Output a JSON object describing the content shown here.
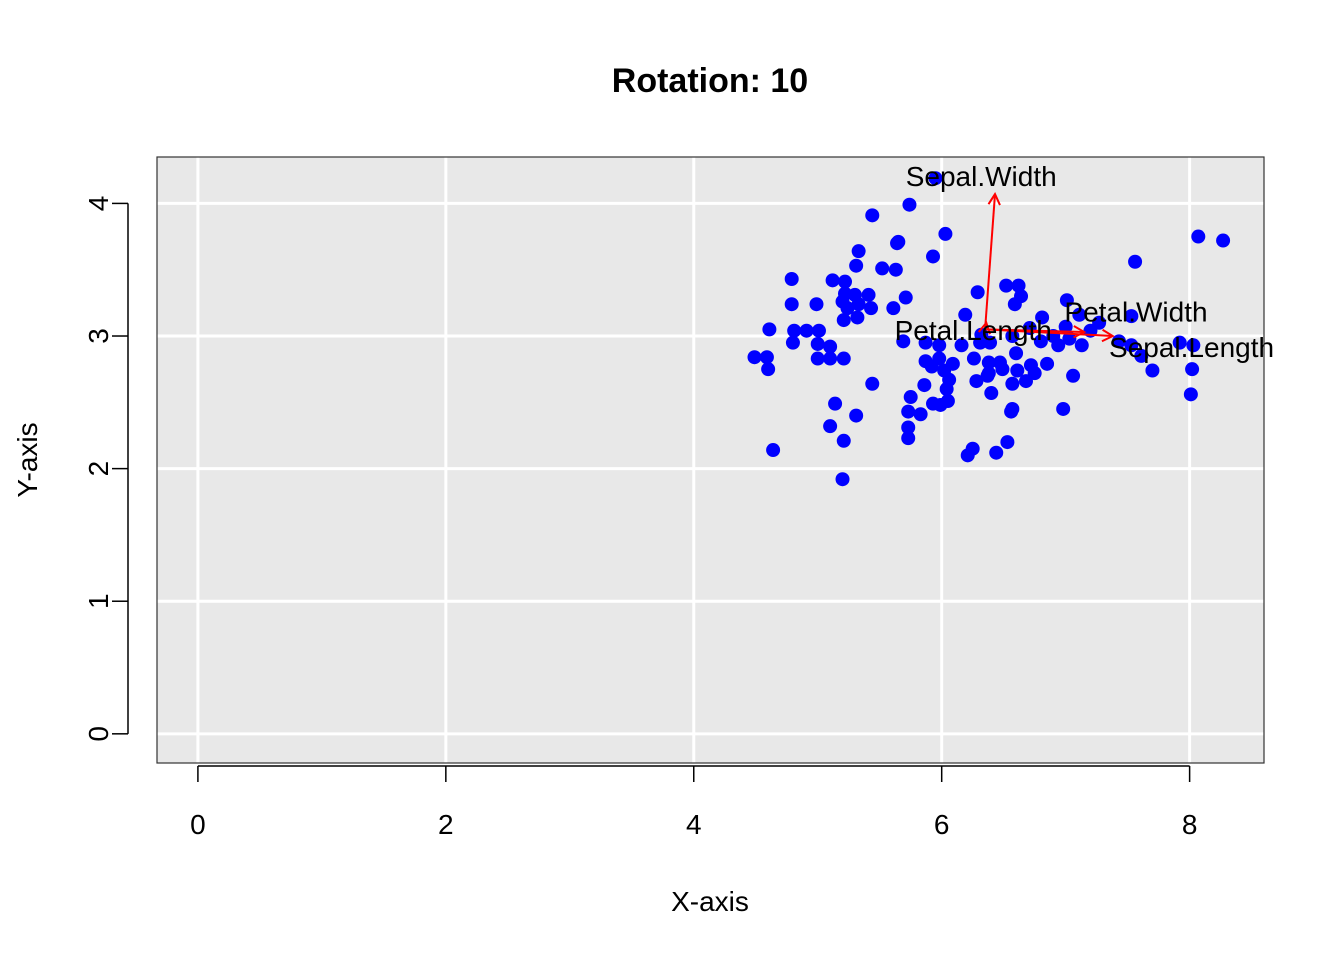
{
  "chart_data": {
    "type": "scatter",
    "title": "Rotation: 10",
    "xlabel": "X-axis",
    "ylabel": "Y-axis",
    "xlim": [
      -0.33,
      8.6
    ],
    "ylim": [
      -0.22,
      4.35
    ],
    "xticks": [
      0,
      2,
      4,
      6,
      8
    ],
    "yticks": [
      0,
      1,
      2,
      3,
      4
    ],
    "grid": true,
    "background_color": "#e8e8e8",
    "grid_color": "#ffffff",
    "point_color": "#0000ff",
    "arrow_color": "#ff0000",
    "points": [
      [
        5.95,
        4.19
      ],
      [
        5.74,
        3.99
      ],
      [
        5.44,
        3.91
      ],
      [
        6.03,
        3.77
      ],
      [
        5.65,
        3.71
      ],
      [
        5.64,
        3.7
      ],
      [
        5.33,
        3.64
      ],
      [
        5.93,
        3.6
      ],
      [
        5.31,
        3.53
      ],
      [
        5.52,
        3.51
      ],
      [
        5.63,
        3.5
      ],
      [
        8.07,
        3.75
      ],
      [
        8.27,
        3.72
      ],
      [
        7.56,
        3.56
      ],
      [
        4.79,
        3.43
      ],
      [
        5.12,
        3.42
      ],
      [
        5.22,
        3.41
      ],
      [
        6.29,
        3.33
      ],
      [
        6.52,
        3.38
      ],
      [
        6.62,
        3.38
      ],
      [
        5.22,
        3.32
      ],
      [
        5.3,
        3.31
      ],
      [
        5.41,
        3.31
      ],
      [
        5.71,
        3.29
      ],
      [
        6.64,
        3.3
      ],
      [
        7.01,
        3.27
      ],
      [
        4.79,
        3.24
      ],
      [
        4.99,
        3.24
      ],
      [
        5.2,
        3.26
      ],
      [
        5.33,
        3.24
      ],
      [
        5.24,
        3.21
      ],
      [
        5.43,
        3.21
      ],
      [
        5.61,
        3.21
      ],
      [
        6.19,
        3.16
      ],
      [
        6.59,
        3.24
      ],
      [
        6.81,
        3.14
      ],
      [
        7.11,
        3.16
      ],
      [
        7.27,
        3.1
      ],
      [
        7.53,
        3.15
      ],
      [
        5.21,
        3.12
      ],
      [
        5.32,
        3.14
      ],
      [
        6.71,
        3.06
      ],
      [
        7.0,
        3.07
      ],
      [
        7.2,
        3.04
      ],
      [
        4.61,
        3.05
      ],
      [
        4.81,
        3.04
      ],
      [
        4.91,
        3.04
      ],
      [
        5.01,
        3.04
      ],
      [
        6.32,
        3.01
      ],
      [
        6.57,
        3.0
      ],
      [
        6.9,
        3.0
      ],
      [
        7.03,
        2.98
      ],
      [
        7.43,
        2.96
      ],
      [
        7.53,
        2.93
      ],
      [
        4.8,
        2.95
      ],
      [
        5.0,
        2.94
      ],
      [
        5.1,
        2.92
      ],
      [
        5.69,
        2.96
      ],
      [
        5.87,
        2.95
      ],
      [
        5.98,
        2.93
      ],
      [
        6.16,
        2.93
      ],
      [
        6.31,
        2.95
      ],
      [
        6.39,
        2.95
      ],
      [
        6.8,
        2.96
      ],
      [
        6.94,
        2.93
      ],
      [
        7.13,
        2.93
      ],
      [
        7.92,
        2.95
      ],
      [
        8.03,
        2.93
      ],
      [
        4.49,
        2.84
      ],
      [
        4.59,
        2.84
      ],
      [
        5.0,
        2.83
      ],
      [
        5.1,
        2.83
      ],
      [
        5.21,
        2.83
      ],
      [
        5.87,
        2.81
      ],
      [
        5.98,
        2.83
      ],
      [
        6.09,
        2.79
      ],
      [
        6.26,
        2.83
      ],
      [
        6.38,
        2.8
      ],
      [
        6.6,
        2.87
      ],
      [
        6.72,
        2.78
      ],
      [
        6.85,
        2.79
      ],
      [
        7.61,
        2.85
      ],
      [
        4.6,
        2.75
      ],
      [
        5.92,
        2.77
      ],
      [
        6.02,
        2.74
      ],
      [
        6.38,
        2.72
      ],
      [
        6.47,
        2.8
      ],
      [
        6.49,
        2.75
      ],
      [
        6.61,
        2.74
      ],
      [
        6.75,
        2.72
      ],
      [
        7.06,
        2.7
      ],
      [
        7.7,
        2.74
      ],
      [
        8.02,
        2.75
      ],
      [
        6.06,
        2.67
      ],
      [
        6.28,
        2.66
      ],
      [
        6.37,
        2.7
      ],
      [
        6.57,
        2.64
      ],
      [
        6.68,
        2.66
      ],
      [
        5.44,
        2.64
      ],
      [
        5.86,
        2.63
      ],
      [
        6.04,
        2.6
      ],
      [
        6.4,
        2.57
      ],
      [
        8.01,
        2.56
      ],
      [
        5.75,
        2.54
      ],
      [
        5.93,
        2.49
      ],
      [
        5.99,
        2.48
      ],
      [
        6.05,
        2.51
      ],
      [
        5.14,
        2.49
      ],
      [
        5.73,
        2.43
      ],
      [
        5.83,
        2.41
      ],
      [
        6.56,
        2.43
      ],
      [
        6.57,
        2.45
      ],
      [
        6.98,
        2.45
      ],
      [
        5.31,
        2.4
      ],
      [
        5.1,
        2.32
      ],
      [
        5.73,
        2.31
      ],
      [
        5.21,
        2.21
      ],
      [
        5.73,
        2.23
      ],
      [
        6.53,
        2.2
      ],
      [
        6.25,
        2.15
      ],
      [
        6.21,
        2.1
      ],
      [
        6.44,
        2.12
      ],
      [
        4.64,
        2.14
      ],
      [
        5.2,
        1.92
      ]
    ],
    "arrows": [
      {
        "name": "Sepal.Width",
        "x0": 6.35,
        "y0": 3.05,
        "x1": 6.43,
        "y1": 4.07,
        "label_x": 5.71,
        "label_y": 4.13
      },
      {
        "name": "Petal.Width",
        "x0": 6.35,
        "y0": 3.05,
        "x1": 7.15,
        "y1": 3.03,
        "label_x": 6.99,
        "label_y": 3.11
      },
      {
        "name": "Sepal.Length",
        "x0": 6.35,
        "y0": 3.05,
        "x1": 7.38,
        "y1": 3.0,
        "label_x": 7.35,
        "label_y": 2.84
      },
      {
        "name": "Petal.Length",
        "x0": 6.35,
        "y0": 3.05,
        "x1": 6.36,
        "y1": 3.1,
        "label_x": 5.62,
        "label_y": 2.97
      }
    ]
  }
}
